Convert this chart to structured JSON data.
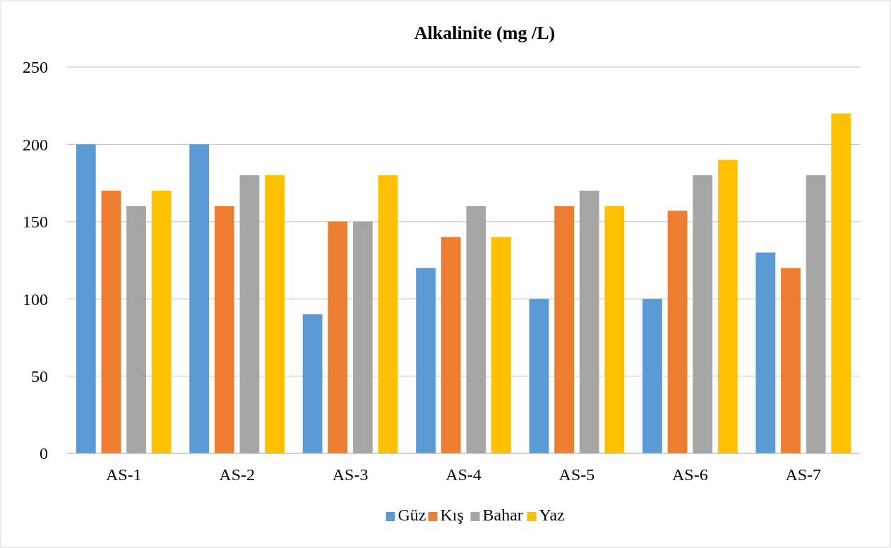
{
  "chart_data": {
    "type": "bar",
    "title": "Alkalinite (mg /L)",
    "categories": [
      "AS-1",
      "AS-2",
      "AS-3",
      "AS-4",
      "AS-5",
      "AS-6",
      "AS-7"
    ],
    "series": [
      {
        "name": "Güz",
        "color": "#5b9bd5",
        "values": [
          200,
          200,
          90,
          120,
          100,
          100,
          130
        ]
      },
      {
        "name": "Kış",
        "color": "#ed7d31",
        "values": [
          170,
          160,
          150,
          140,
          160,
          157,
          120
        ]
      },
      {
        "name": "Bahar",
        "color": "#a5a5a5",
        "values": [
          160,
          180,
          150,
          160,
          170,
          180,
          180
        ]
      },
      {
        "name": "Yaz",
        "color": "#ffc000",
        "values": [
          170,
          180,
          180,
          140,
          160,
          190,
          220
        ]
      }
    ],
    "ylim": [
      0,
      250
    ],
    "yticks": [
      0,
      50,
      100,
      150,
      200,
      250
    ],
    "grid": "y",
    "legend": "bottom"
  }
}
